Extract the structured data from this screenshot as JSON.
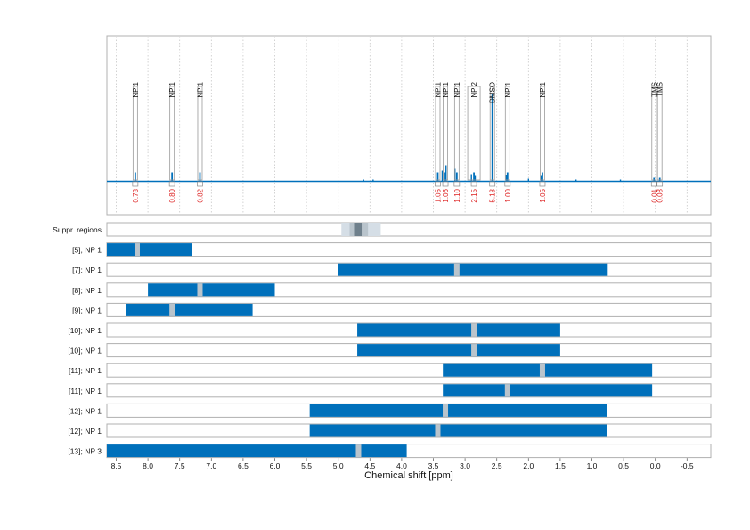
{
  "colors": {
    "bar": "#0070bb",
    "spectrum": "#0070bb",
    "suppressed": "#b9c4cc",
    "suppressed_light": "#d5dee6",
    "suppressed_dark": "#6f808c",
    "area_label": "#dd2222",
    "frame": "#b0b0b0",
    "grid": "#c8c8c8",
    "text": "#111111"
  },
  "chart_data": {
    "type": "bar",
    "xlabel": "Chemical shift [ppm]",
    "xlim": [
      8.85,
      -0.55
    ],
    "x_reversed": true,
    "x_ticks": [
      "8.5",
      "8.0",
      "7.5",
      "7.0",
      "6.5",
      "6.0",
      "5.5",
      "5.0",
      "4.5",
      "4.0",
      "3.5",
      "3.0",
      "2.5",
      "2.0",
      "1.5",
      "1.0",
      "0.5",
      "0.0",
      "-0.5"
    ],
    "grid": true,
    "spectrum_annotations": [
      {
        "label": "NP 1",
        "ppm": 8.2,
        "area": "0.78"
      },
      {
        "label": "NP 1",
        "ppm": 7.62,
        "area": "0.80"
      },
      {
        "label": "NP 1",
        "ppm": 7.18,
        "area": "0.82"
      },
      {
        "label": "NP 1",
        "ppm": 3.43,
        "area": "1.05"
      },
      {
        "label": "NP 1",
        "ppm": 3.31,
        "area": "1.06"
      },
      {
        "label": "NP 1",
        "ppm": 3.13,
        "area": "1.10"
      },
      {
        "label": "NP 2",
        "ppm": 2.86,
        "area": "2.15"
      },
      {
        "label": "DMSO",
        "ppm": 2.57,
        "area": "5.13"
      },
      {
        "label": "NP 1",
        "ppm": 2.33,
        "area": "1.00"
      },
      {
        "label": "NP 1",
        "ppm": 1.78,
        "area": "1.05"
      },
      {
        "label": "TMS",
        "ppm": 0.02,
        "area": "0.01"
      },
      {
        "label": "TMS",
        "ppm": -0.07,
        "area": "0.08"
      }
    ],
    "suppressed_regions": {
      "label": "Suppr. regions",
      "outer": [
        4.95,
        4.33
      ],
      "inner": [
        4.82,
        4.53
      ],
      "core": [
        4.75,
        4.63
      ]
    },
    "rows": [
      {
        "label": "[5]; NP 1",
        "range": [
          8.85,
          7.3
        ],
        "gaps": [
          8.17
        ]
      },
      {
        "label": "[7]; NP 1",
        "range": [
          5.0,
          0.75
        ],
        "gaps": [
          3.13
        ]
      },
      {
        "label": "[8]; NP 1",
        "range": [
          8.0,
          6.0
        ],
        "gaps": [
          7.18
        ]
      },
      {
        "label": "[9]; NP 1",
        "range": [
          8.35,
          6.35
        ],
        "gaps": [
          7.62
        ]
      },
      {
        "label": "[10]; NP 1",
        "range": [
          4.7,
          1.5
        ],
        "gaps": [
          2.86
        ]
      },
      {
        "label": "[10]; NP 1",
        "range": [
          4.7,
          1.5
        ],
        "gaps": [
          2.86
        ]
      },
      {
        "label": "[11]; NP 1",
        "range": [
          3.35,
          0.05
        ],
        "gaps": [
          1.78
        ]
      },
      {
        "label": "[11]; NP 1",
        "range": [
          3.35,
          0.05
        ],
        "gaps": [
          2.33
        ]
      },
      {
        "label": "[12]; NP 1",
        "range": [
          5.45,
          0.76
        ],
        "gaps": [
          3.31
        ]
      },
      {
        "label": "[12]; NP 1",
        "range": [
          5.45,
          0.76
        ],
        "gaps": [
          3.43
        ]
      },
      {
        "label": "[13]; NP 3",
        "range": [
          8.85,
          3.92
        ],
        "gaps": [
          4.68
        ]
      }
    ]
  }
}
